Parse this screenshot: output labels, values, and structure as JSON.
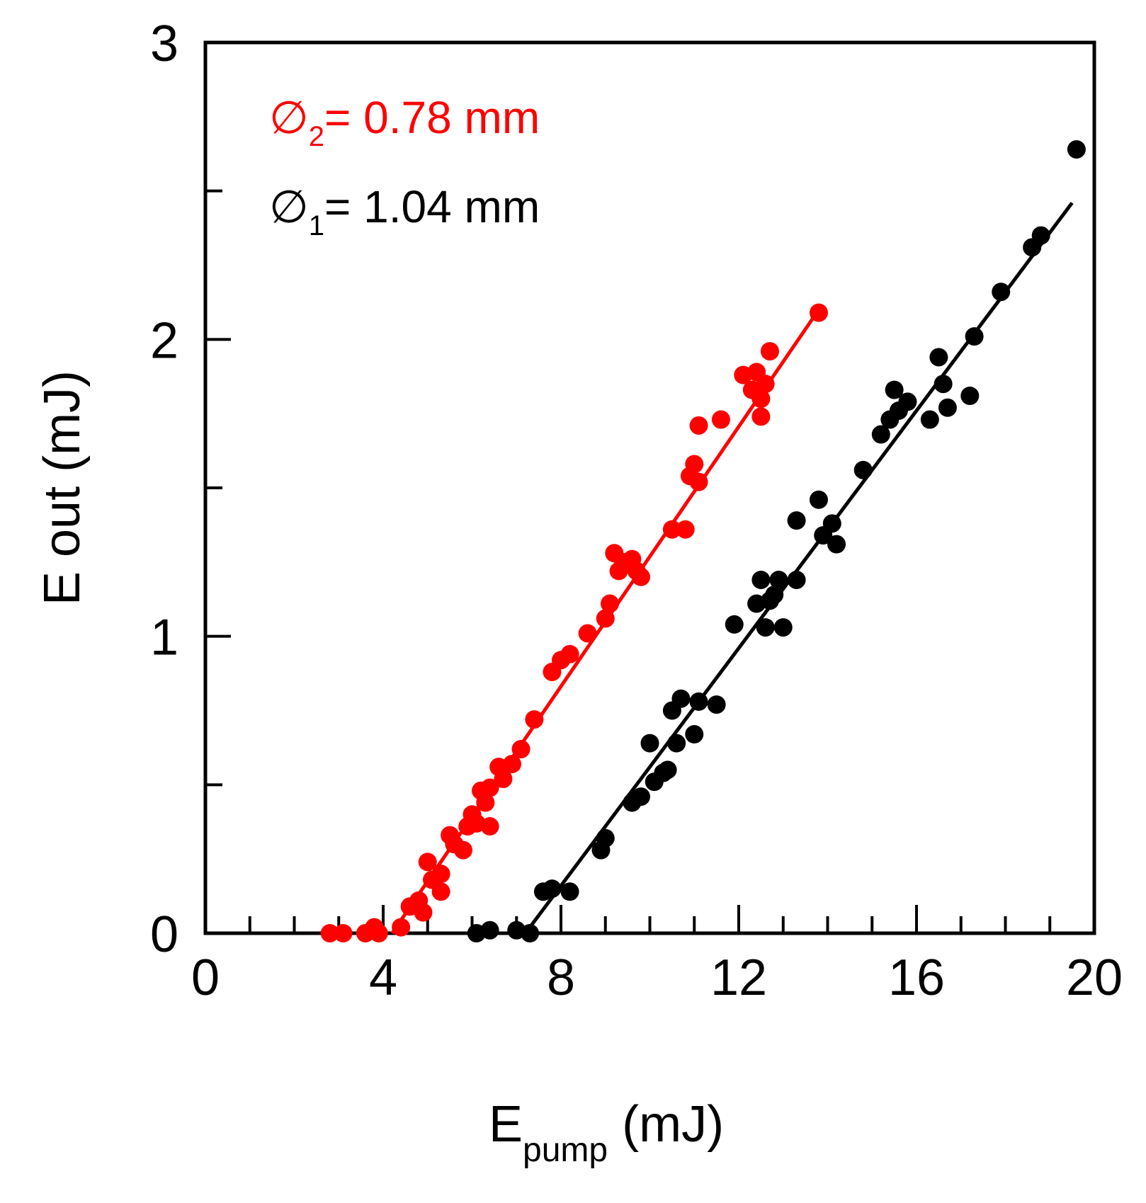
{
  "chart_data": {
    "type": "scatter",
    "title": "",
    "xlabel": "E",
    "xlabel_sub": "pump",
    "xlabel_unit": " (mJ)",
    "ylabel": "E out (mJ)",
    "xlim": [
      0,
      20
    ],
    "ylim": [
      0,
      3
    ],
    "xticks": [
      0,
      4,
      8,
      12,
      16,
      20
    ],
    "yticks": [
      0,
      1,
      2,
      3
    ],
    "x_minor_step": 1,
    "y_minor_step": 0.5,
    "grid": false,
    "legend_position": "top-left",
    "series": [
      {
        "name": "diam2",
        "symbol": "∅",
        "subscript": "2",
        "label_text": "= 0.78 mm",
        "color": "#ff0000",
        "points": [
          [
            2.8,
            0.0
          ],
          [
            3.1,
            0.0
          ],
          [
            3.6,
            0.0
          ],
          [
            3.8,
            0.02
          ],
          [
            3.9,
            0.0
          ],
          [
            4.4,
            0.02
          ],
          [
            4.6,
            0.09
          ],
          [
            4.8,
            0.11
          ],
          [
            4.9,
            0.07
          ],
          [
            5.0,
            0.24
          ],
          [
            5.1,
            0.18
          ],
          [
            5.3,
            0.2
          ],
          [
            5.3,
            0.14
          ],
          [
            5.5,
            0.33
          ],
          [
            5.6,
            0.3
          ],
          [
            5.8,
            0.28
          ],
          [
            5.9,
            0.36
          ],
          [
            6.0,
            0.4
          ],
          [
            6.1,
            0.37
          ],
          [
            6.2,
            0.48
          ],
          [
            6.3,
            0.44
          ],
          [
            6.4,
            0.49
          ],
          [
            6.4,
            0.36
          ],
          [
            6.6,
            0.56
          ],
          [
            6.7,
            0.52
          ],
          [
            6.9,
            0.57
          ],
          [
            7.1,
            0.62
          ],
          [
            7.4,
            0.72
          ],
          [
            7.8,
            0.88
          ],
          [
            8.0,
            0.92
          ],
          [
            8.2,
            0.94
          ],
          [
            8.6,
            1.01
          ],
          [
            9.0,
            1.06
          ],
          [
            9.1,
            1.11
          ],
          [
            9.2,
            1.28
          ],
          [
            9.3,
            1.22
          ],
          [
            9.4,
            1.25
          ],
          [
            9.6,
            1.26
          ],
          [
            9.7,
            1.22
          ],
          [
            9.8,
            1.2
          ],
          [
            10.5,
            1.36
          ],
          [
            10.8,
            1.36
          ],
          [
            10.9,
            1.54
          ],
          [
            11.0,
            1.58
          ],
          [
            11.1,
            1.52
          ],
          [
            11.1,
            1.71
          ],
          [
            11.6,
            1.73
          ],
          [
            12.1,
            1.88
          ],
          [
            12.3,
            1.83
          ],
          [
            12.4,
            1.89
          ],
          [
            12.5,
            1.74
          ],
          [
            12.5,
            1.8
          ],
          [
            12.6,
            1.85
          ],
          [
            12.7,
            1.96
          ],
          [
            13.8,
            2.09
          ]
        ],
        "fit": {
          "x0": 4.2,
          "x1": 13.8,
          "y0": 0.0,
          "y1": 2.1
        }
      },
      {
        "name": "diam1",
        "symbol": "∅",
        "subscript": "1",
        "label_text": "= 1.04 mm",
        "color": "#000000",
        "points": [
          [
            6.1,
            0.0
          ],
          [
            6.4,
            0.01
          ],
          [
            7.0,
            0.01
          ],
          [
            7.3,
            0.0
          ],
          [
            7.6,
            0.14
          ],
          [
            7.8,
            0.15
          ],
          [
            8.2,
            0.14
          ],
          [
            8.9,
            0.28
          ],
          [
            9.0,
            0.32
          ],
          [
            9.6,
            0.44
          ],
          [
            9.8,
            0.46
          ],
          [
            10.0,
            0.64
          ],
          [
            10.1,
            0.51
          ],
          [
            10.3,
            0.54
          ],
          [
            10.4,
            0.55
          ],
          [
            10.5,
            0.75
          ],
          [
            10.6,
            0.64
          ],
          [
            10.7,
            0.79
          ],
          [
            11.0,
            0.67
          ],
          [
            11.1,
            0.78
          ],
          [
            11.5,
            0.77
          ],
          [
            11.9,
            1.04
          ],
          [
            12.4,
            1.11
          ],
          [
            12.5,
            1.19
          ],
          [
            12.6,
            1.03
          ],
          [
            12.7,
            1.12
          ],
          [
            12.8,
            1.14
          ],
          [
            12.9,
            1.19
          ],
          [
            13.0,
            1.03
          ],
          [
            13.3,
            1.19
          ],
          [
            13.3,
            1.39
          ],
          [
            13.8,
            1.46
          ],
          [
            13.9,
            1.34
          ],
          [
            14.1,
            1.38
          ],
          [
            14.2,
            1.31
          ],
          [
            14.8,
            1.56
          ],
          [
            15.2,
            1.68
          ],
          [
            15.4,
            1.73
          ],
          [
            15.5,
            1.83
          ],
          [
            15.6,
            1.76
          ],
          [
            15.8,
            1.79
          ],
          [
            16.3,
            1.73
          ],
          [
            16.5,
            1.94
          ],
          [
            16.6,
            1.85
          ],
          [
            16.7,
            1.77
          ],
          [
            17.2,
            1.81
          ],
          [
            17.3,
            2.01
          ],
          [
            17.9,
            2.16
          ],
          [
            18.6,
            2.31
          ],
          [
            18.8,
            2.35
          ],
          [
            19.6,
            2.64
          ]
        ],
        "fit": {
          "x0": 7.2,
          "x1": 19.5,
          "y0": 0.0,
          "y1": 2.46
        }
      }
    ]
  }
}
